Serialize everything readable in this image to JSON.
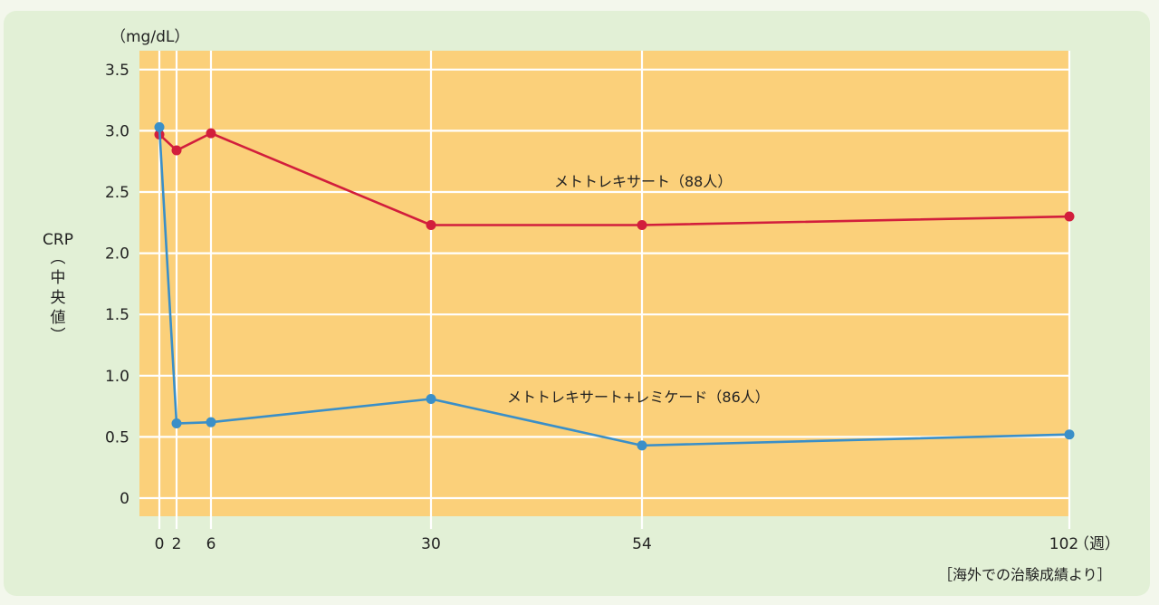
{
  "chart_data": {
    "type": "line",
    "ylabel": "CRP（中央値）",
    "yunit": "（mg/dL）",
    "xunit": "（週）",
    "ylim": [
      0,
      3.5
    ],
    "y_ticks": [
      "0",
      "0.5",
      "1.0",
      "1.5",
      "2.0",
      "2.5",
      "3.0",
      "3.5"
    ],
    "x": [
      0,
      2,
      6,
      30,
      54,
      102
    ],
    "x_ticks": [
      "0",
      "2",
      "6",
      "30",
      "54",
      "102"
    ],
    "grid": true,
    "background": "#fbd07a",
    "series": [
      {
        "name": "メトトレキサート（88人）",
        "color": "#d21e3c",
        "values": [
          2.97,
          2.84,
          2.98,
          2.23,
          2.23,
          2.3
        ]
      },
      {
        "name": "メトトレキサート+レミケード（86人）",
        "color": "#3a8fc8",
        "values": [
          3.03,
          0.61,
          0.62,
          0.81,
          0.43,
          0.52
        ]
      }
    ],
    "source": "［海外での治験成績より］"
  }
}
